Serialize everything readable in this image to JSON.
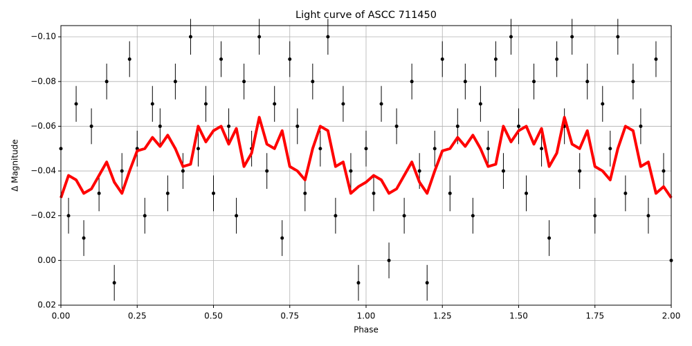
{
  "chart_data": {
    "type": "line",
    "title": "Light curve of ASCC 711450",
    "xlabel": "Phase",
    "ylabel": "Δ Magnitude",
    "x": [
      0,
      0.025,
      0.05,
      0.075,
      0.1,
      0.125,
      0.15,
      0.175,
      0.2,
      0.225,
      0.25,
      0.275,
      0.3,
      0.325,
      0.35,
      0.375,
      0.4,
      0.425,
      0.45,
      0.475,
      0.5,
      0.525,
      0.55,
      0.575,
      0.6,
      0.625,
      0.65,
      0.675,
      0.7,
      0.725,
      0.75,
      0.775,
      0.8,
      0.825,
      0.85,
      0.875,
      0.9,
      0.925,
      0.95,
      0.975,
      1,
      1.025,
      1.05,
      1.075,
      1.1,
      1.125,
      1.15,
      1.175,
      1.2,
      1.225,
      1.25,
      1.275,
      1.3,
      1.325,
      1.35,
      1.375,
      1.4,
      1.425,
      1.45,
      1.475,
      1.5,
      1.525,
      1.55,
      1.575,
      1.6,
      1.625,
      1.65,
      1.675,
      1.7,
      1.725,
      1.75,
      1.775,
      1.8,
      1.825,
      1.85,
      1.875,
      1.9,
      1.925,
      1.95,
      1.975,
      2
    ],
    "series": [
      {
        "type": "errorbar",
        "color": "#000000",
        "values": [
          -0.05,
          -0.02,
          -0.07,
          -0.01,
          -0.06,
          -0.03,
          -0.08,
          0.01,
          -0.04,
          -0.09,
          -0.05,
          -0.02,
          -0.07,
          -0.06,
          -0.03,
          -0.08,
          -0.04,
          -0.1,
          -0.05,
          -0.07,
          -0.03,
          -0.09,
          -0.06,
          -0.02,
          -0.08,
          -0.05,
          -0.1,
          -0.04,
          -0.07,
          -0.01,
          -0.09,
          -0.06,
          -0.03,
          -0.08,
          -0.05,
          -0.1,
          -0.02,
          -0.07,
          -0.04,
          0.01,
          -0.05,
          -0.03,
          -0.07,
          0.0,
          -0.06,
          -0.02,
          -0.08,
          -0.04,
          0.01,
          -0.05,
          -0.09,
          -0.03,
          -0.06,
          -0.08,
          -0.02,
          -0.07,
          -0.05,
          -0.09,
          -0.04,
          -0.1,
          -0.06,
          -0.03,
          -0.08,
          -0.05,
          -0.01,
          -0.09,
          -0.06,
          -0.1,
          -0.04,
          -0.08,
          -0.02,
          -0.07,
          -0.05,
          -0.1,
          -0.03,
          -0.08,
          -0.06,
          -0.02,
          -0.09,
          -0.04,
          0.0
        ],
        "errors": [
          0.008,
          0.008,
          0.008,
          0.008,
          0.008,
          0.008,
          0.008,
          0.008,
          0.008,
          0.008,
          0.008,
          0.008,
          0.008,
          0.008,
          0.008,
          0.008,
          0.008,
          0.008,
          0.008,
          0.008,
          0.008,
          0.008,
          0.008,
          0.008,
          0.008,
          0.008,
          0.008,
          0.008,
          0.008,
          0.008,
          0.008,
          0.008,
          0.008,
          0.008,
          0.008,
          0.008,
          0.008,
          0.008,
          0.008,
          0.008,
          0.008,
          0.008,
          0.008,
          0.008,
          0.008,
          0.008,
          0.008,
          0.008,
          0.008,
          0.008,
          0.008,
          0.008,
          0.008,
          0.008,
          0.008,
          0.008,
          0.008,
          0.008,
          0.008,
          0.008,
          0.008,
          0.008,
          0.008,
          0.008,
          0.008,
          0.008,
          0.008,
          0.008,
          0.008,
          0.008,
          0.008,
          0.008,
          0.008,
          0.008,
          0.008,
          0.008,
          0.008,
          0.008,
          0.008,
          0.008,
          0.008
        ]
      },
      {
        "type": "line",
        "color": "#ff0000",
        "values": [
          -0.028,
          -0.038,
          -0.036,
          -0.03,
          -0.032,
          -0.038,
          -0.044,
          -0.035,
          -0.03,
          -0.04,
          -0.049,
          -0.05,
          -0.055,
          -0.051,
          -0.056,
          -0.05,
          -0.042,
          -0.043,
          -0.06,
          -0.053,
          -0.058,
          -0.06,
          -0.052,
          -0.059,
          -0.042,
          -0.048,
          -0.064,
          -0.052,
          -0.05,
          -0.058,
          -0.042,
          -0.04,
          -0.036,
          -0.05,
          -0.06,
          -0.058,
          -0.042,
          -0.044,
          -0.03,
          -0.033,
          -0.035,
          -0.038,
          -0.036,
          -0.03,
          -0.032,
          -0.038,
          -0.044,
          -0.035,
          -0.03,
          -0.04,
          -0.049,
          -0.05,
          -0.055,
          -0.051,
          -0.056,
          -0.05,
          -0.042,
          -0.043,
          -0.06,
          -0.053,
          -0.058,
          -0.06,
          -0.052,
          -0.059,
          -0.042,
          -0.048,
          -0.064,
          -0.052,
          -0.05,
          -0.058,
          -0.042,
          -0.04,
          -0.036,
          -0.05,
          -0.06,
          -0.058,
          -0.042,
          -0.044,
          -0.03,
          -0.033,
          -0.028
        ]
      }
    ],
    "xlim": [
      0,
      2
    ],
    "xticks": [
      {
        "value": 0,
        "label": "0.00"
      },
      {
        "value": 0.25,
        "label": "0.25"
      },
      {
        "value": 0.5,
        "label": "0.50"
      },
      {
        "value": 0.75,
        "label": "0.75"
      },
      {
        "value": 1,
        "label": "1.00"
      },
      {
        "value": 1.25,
        "label": "1.25"
      },
      {
        "value": 1.5,
        "label": "1.50"
      },
      {
        "value": 1.75,
        "label": "1.75"
      },
      {
        "value": 2,
        "label": "2.00"
      }
    ],
    "ylim": [
      0.02,
      -0.105
    ],
    "yticks": [
      {
        "value": 0.02,
        "label": "0.02"
      },
      {
        "value": 0,
        "label": "0.00"
      },
      {
        "value": -0.02,
        "label": "−0.02"
      },
      {
        "value": -0.04,
        "label": "−0.04"
      },
      {
        "value": -0.06,
        "label": "−0.06"
      },
      {
        "value": -0.08,
        "label": "−0.08"
      },
      {
        "value": -0.1,
        "label": "−0.10"
      }
    ],
    "grid": true
  }
}
